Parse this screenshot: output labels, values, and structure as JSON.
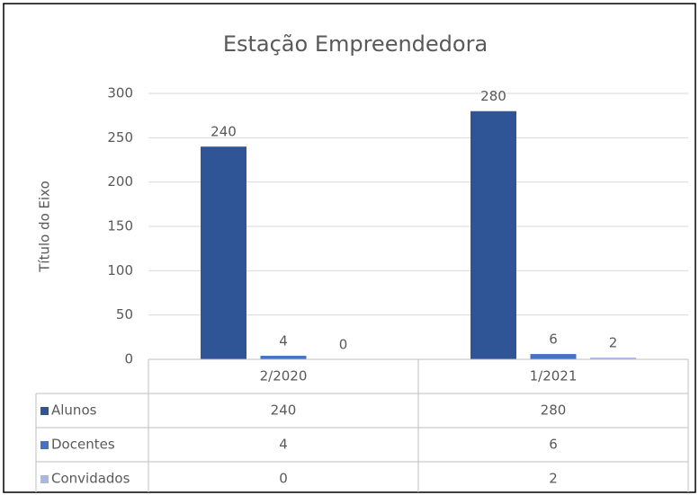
{
  "chart_data": {
    "type": "bar",
    "title": "Estação Empreendedora",
    "y_label": "Título do Eixo",
    "categories": [
      "2/2020",
      "1/2021"
    ],
    "series": [
      {
        "name": "Alunos",
        "color": "#2f5597",
        "values": [
          240,
          280
        ]
      },
      {
        "name": "Docentes",
        "color": "#4472c4",
        "values": [
          4,
          6
        ]
      },
      {
        "name": "Convidados",
        "color": "#a9b8e0",
        "values": [
          0,
          2
        ]
      }
    ],
    "ylim": [
      0,
      300
    ],
    "yticks": [
      0,
      50,
      100,
      150,
      200,
      250,
      300
    ],
    "grid": true,
    "data_table": true
  }
}
